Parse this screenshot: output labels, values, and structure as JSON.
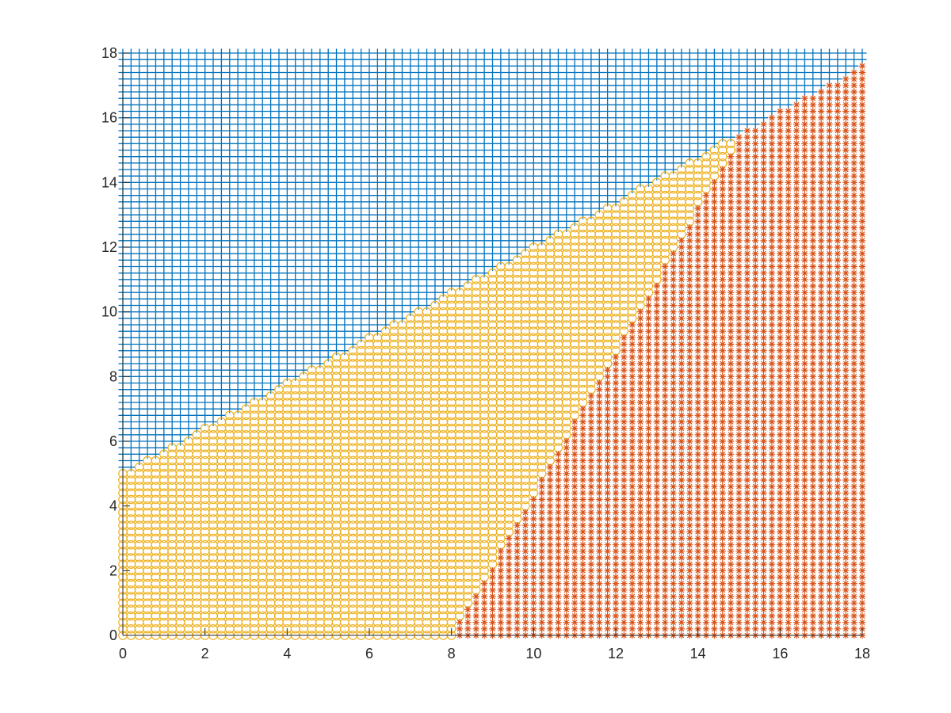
{
  "chart_data": {
    "type": "scatter",
    "title": "",
    "xlabel": "",
    "ylabel": "",
    "xlim": [
      0,
      18
    ],
    "ylim": [
      0,
      18
    ],
    "grid": false,
    "legend": "none",
    "x_ticks": [
      "0",
      "2",
      "4",
      "6",
      "8",
      "10",
      "12",
      "14",
      "16",
      "18"
    ],
    "y_ticks": [
      "0",
      "2",
      "4",
      "6",
      "8",
      "10",
      "12",
      "14",
      "16",
      "18"
    ],
    "sampling": {
      "x_start": 0,
      "x_end": 18,
      "x_step": 0.2,
      "y_start": 0,
      "y_end": 18,
      "y_step": 0.2
    },
    "series": [
      {
        "marker": "plus",
        "color": "#0072BD",
        "region": "points above the upper boundary: y > 5 + 0.7 * x"
      },
      {
        "marker": "circle",
        "color": "#EDB120",
        "region": "points between the boundaries: y <= 5 + 0.7 * x and y >= 2.2 * (x - 8)"
      },
      {
        "marker": "asterisk",
        "color": "#D95319",
        "region": "points below the lower boundary: y < 2.2 * (x - 8) and y <= 5 + 0.7 * x"
      }
    ],
    "boundaries": [
      {
        "name_hint": "upper",
        "intercept": 5,
        "slope": 0.7
      },
      {
        "name_hint": "lower",
        "x_intercept": 8,
        "slope": 2.2
      }
    ]
  }
}
